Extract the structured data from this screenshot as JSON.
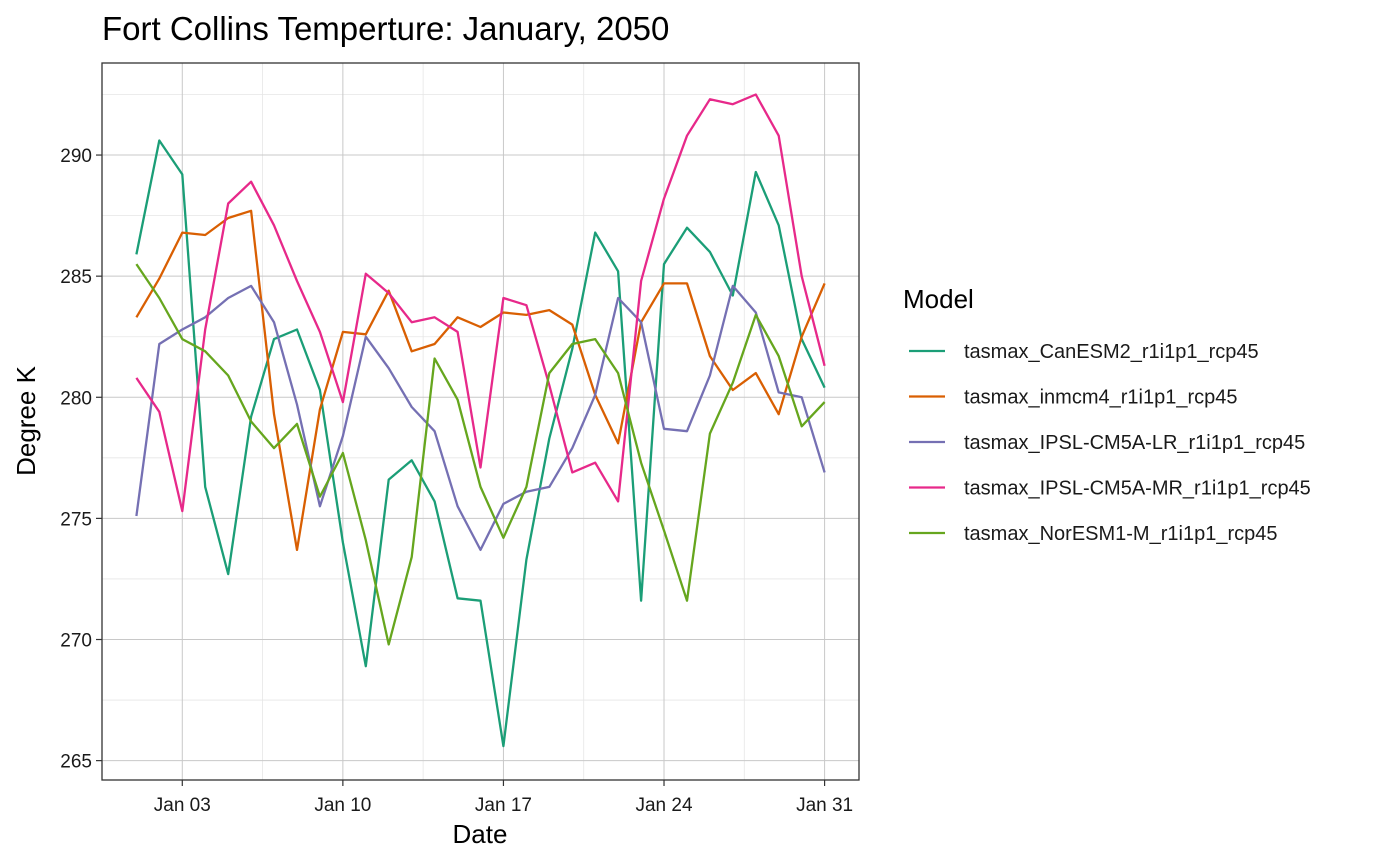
{
  "chart_data": {
    "type": "line",
    "title": "Fort Collins Temperture: January, 2050",
    "xlabel": "Date",
    "ylabel": "Degree K",
    "x": [
      1,
      2,
      3,
      4,
      5,
      6,
      7,
      8,
      9,
      10,
      11,
      12,
      13,
      14,
      15,
      16,
      17,
      18,
      19,
      20,
      21,
      22,
      23,
      24,
      25,
      26,
      27,
      28,
      29,
      30,
      31
    ],
    "xlim": [
      -0.5,
      32.5
    ],
    "ylim": [
      264.2,
      293.8
    ],
    "x_ticks": [
      {
        "value": 3,
        "label": "Jan 03"
      },
      {
        "value": 10,
        "label": "Jan 10"
      },
      {
        "value": 17,
        "label": "Jan 17"
      },
      {
        "value": 24,
        "label": "Jan 24"
      },
      {
        "value": 31,
        "label": "Jan 31"
      }
    ],
    "y_ticks": [
      {
        "value": 265,
        "label": "265"
      },
      {
        "value": 270,
        "label": "270"
      },
      {
        "value": 275,
        "label": "275"
      },
      {
        "value": 280,
        "label": "280"
      },
      {
        "value": 285,
        "label": "285"
      },
      {
        "value": 290,
        "label": "290"
      }
    ],
    "grid": true,
    "legend_title": "Model",
    "legend_position": "right",
    "series": [
      {
        "name": "tasmax_CanESM2_r1i1p1_rcp45",
        "color": "#1b9e77",
        "values": [
          285.9,
          290.6,
          289.2,
          276.3,
          272.7,
          279.2,
          282.4,
          282.8,
          280.3,
          274.0,
          268.9,
          276.6,
          277.4,
          275.7,
          271.7,
          271.6,
          265.6,
          273.3,
          278.3,
          282.0,
          286.8,
          285.2,
          271.6,
          285.5,
          287.0,
          286.0,
          284.2,
          289.3,
          287.1,
          282.4,
          280.4
        ]
      },
      {
        "name": "tasmax_inmcm4_r1i1p1_rcp45",
        "color": "#d95f02",
        "values": [
          283.3,
          284.9,
          286.8,
          286.7,
          287.4,
          287.7,
          279.3,
          273.7,
          279.5,
          282.7,
          282.6,
          284.4,
          281.9,
          282.2,
          283.3,
          282.9,
          283.5,
          283.4,
          283.6,
          283.0,
          280.1,
          278.1,
          283.1,
          284.7,
          284.7,
          281.7,
          280.3,
          281.0,
          279.3,
          282.5,
          284.7
        ]
      },
      {
        "name": "tasmax_IPSL-CM5A-LR_r1i1p1_rcp45",
        "color": "#7570b3",
        "values": [
          275.1,
          282.2,
          282.8,
          283.3,
          284.1,
          284.6,
          283.1,
          279.7,
          275.5,
          278.4,
          282.5,
          281.2,
          279.6,
          278.6,
          275.5,
          273.7,
          275.6,
          276.1,
          276.3,
          277.9,
          280.1,
          284.1,
          283.1,
          278.7,
          278.6,
          280.9,
          284.6,
          283.5,
          280.2,
          280.0,
          276.9
        ]
      },
      {
        "name": "tasmax_IPSL-CM5A-MR_r1i1p1_rcp45",
        "color": "#e7298a",
        "values": [
          280.8,
          279.4,
          275.3,
          282.8,
          288.0,
          288.9,
          287.1,
          284.8,
          282.7,
          279.8,
          285.1,
          284.3,
          283.1,
          283.3,
          282.7,
          277.1,
          284.1,
          283.8,
          280.5,
          276.9,
          277.3,
          275.7,
          284.8,
          288.2,
          290.8,
          292.3,
          292.1,
          292.5,
          290.8,
          285.0,
          281.3
        ]
      },
      {
        "name": "tasmax_NorESM1-M_r1i1p1_rcp45",
        "color": "#66a61e",
        "values": [
          285.5,
          284.1,
          282.4,
          281.9,
          280.9,
          279.0,
          277.9,
          278.9,
          275.9,
          277.7,
          274.1,
          269.8,
          273.4,
          281.6,
          279.9,
          276.3,
          274.2,
          276.3,
          281.0,
          282.2,
          282.4,
          281.0,
          277.3,
          274.5,
          271.6,
          278.5,
          280.6,
          283.4,
          281.7,
          278.8,
          279.8
        ]
      }
    ]
  }
}
